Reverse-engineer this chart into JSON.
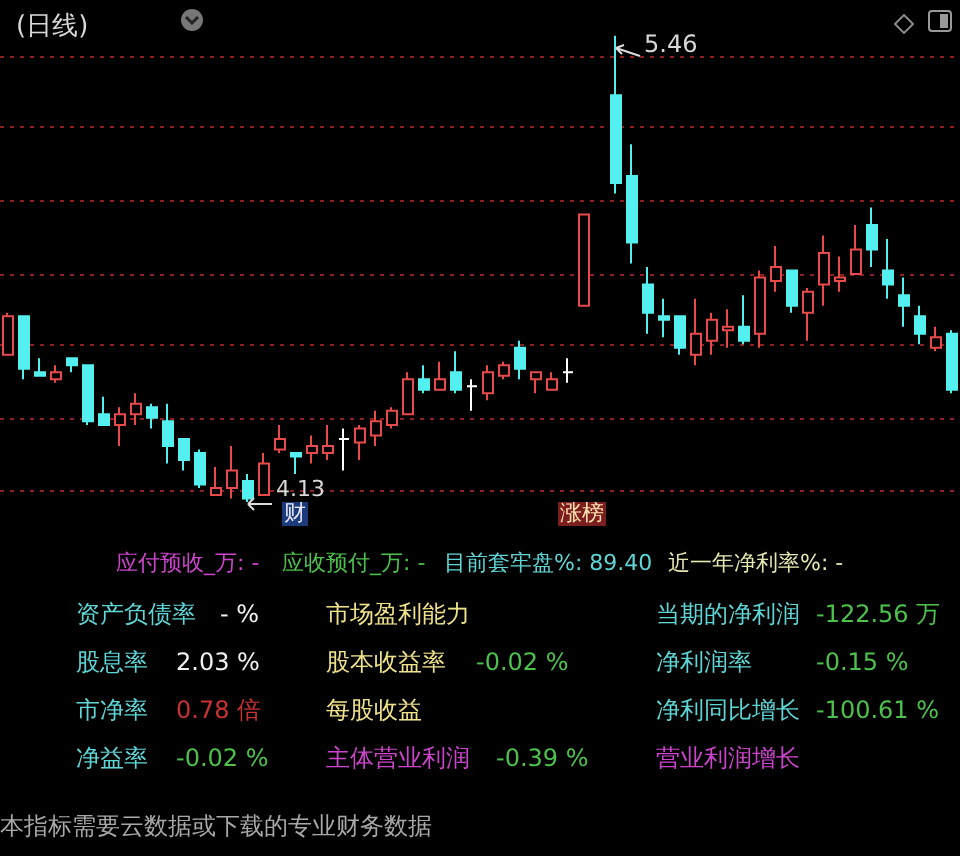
{
  "chart_data": [
    {
      "type": "candlestick",
      "title": "(日线)",
      "categories": [
        null,
        null,
        null,
        null,
        null,
        null,
        null,
        null,
        null,
        null,
        null,
        null,
        null,
        null,
        null,
        null,
        null,
        null,
        null,
        null,
        null,
        null,
        null,
        null,
        null,
        null,
        null,
        null,
        null,
        null,
        null,
        null,
        null,
        null,
        null,
        null,
        null,
        null,
        null,
        null,
        null,
        null,
        null,
        null,
        null,
        null,
        null,
        null,
        null,
        null,
        null,
        null,
        null,
        null,
        null,
        null,
        null,
        null,
        null,
        null
      ],
      "ohlc": [
        [
          4.55,
          4.67,
          4.55,
          4.66
        ],
        [
          4.66,
          4.66,
          4.48,
          4.51
        ],
        [
          4.5,
          4.54,
          4.49,
          4.49
        ],
        [
          4.48,
          4.52,
          4.47,
          4.5
        ],
        [
          4.54,
          4.54,
          4.5,
          4.52
        ],
        [
          4.52,
          4.52,
          4.35,
          4.36
        ],
        [
          4.38,
          4.43,
          4.35,
          4.35
        ],
        [
          4.35,
          4.4,
          4.29,
          4.38
        ],
        [
          4.38,
          4.44,
          4.35,
          4.41
        ],
        [
          4.4,
          4.41,
          4.34,
          4.37
        ],
        [
          4.36,
          4.41,
          4.24,
          4.29
        ],
        [
          4.31,
          4.31,
          4.22,
          4.25
        ],
        [
          4.27,
          4.28,
          4.17,
          4.18
        ],
        [
          4.15,
          4.23,
          4.15,
          4.17
        ],
        [
          4.17,
          4.29,
          4.14,
          4.22
        ],
        [
          4.19,
          4.21,
          4.13,
          4.14
        ],
        [
          4.15,
          4.27,
          4.15,
          4.24
        ],
        [
          4.28,
          4.35,
          4.27,
          4.31
        ],
        [
          4.27,
          4.27,
          4.21,
          4.26
        ],
        [
          4.27,
          4.32,
          4.24,
          4.29
        ],
        [
          4.27,
          4.35,
          4.25,
          4.29
        ],
        [
          4.31,
          4.34,
          4.22,
          4.31
        ],
        [
          4.3,
          4.35,
          4.25,
          4.34
        ],
        [
          4.32,
          4.39,
          4.29,
          4.36
        ],
        [
          4.35,
          4.4,
          4.34,
          4.39
        ],
        [
          4.38,
          4.5,
          4.38,
          4.48
        ],
        [
          4.48,
          4.52,
          4.44,
          4.45
        ],
        [
          4.45,
          4.53,
          4.45,
          4.48
        ],
        [
          4.5,
          4.56,
          4.44,
          4.45
        ],
        [
          4.46,
          4.48,
          4.39,
          4.46
        ],
        [
          4.44,
          4.52,
          4.42,
          4.5
        ],
        [
          4.49,
          4.53,
          4.48,
          4.52
        ],
        [
          4.57,
          4.59,
          4.48,
          4.51
        ],
        [
          4.48,
          4.5,
          4.44,
          4.5
        ],
        [
          4.45,
          4.5,
          4.45,
          4.48
        ],
        [
          4.5,
          4.54,
          4.47,
          4.5
        ],
        [
          4.69,
          4.95,
          4.69,
          4.95
        ],
        null,
        [
          5.29,
          5.46,
          5.01,
          5.04
        ],
        [
          5.06,
          5.15,
          4.81,
          4.87
        ],
        [
          4.75,
          4.8,
          4.61,
          4.67
        ],
        [
          4.66,
          4.71,
          4.6,
          4.65
        ],
        [
          4.66,
          4.66,
          4.55,
          4.57
        ],
        [
          4.55,
          4.71,
          4.52,
          4.61
        ],
        [
          4.59,
          4.67,
          4.55,
          4.65
        ],
        [
          4.62,
          4.68,
          4.57,
          4.63
        ],
        [
          4.63,
          4.72,
          4.58,
          4.59
        ],
        [
          4.61,
          4.79,
          4.57,
          4.77
        ],
        [
          4.76,
          4.86,
          4.73,
          4.8
        ],
        [
          4.79,
          4.79,
          4.67,
          4.69
        ],
        [
          4.67,
          4.74,
          4.59,
          4.73
        ],
        [
          4.75,
          4.89,
          4.69,
          4.84
        ],
        [
          4.76,
          4.83,
          4.73,
          4.77
        ],
        [
          4.78,
          4.92,
          4.78,
          4.85
        ],
        [
          4.92,
          4.97,
          4.8,
          4.85
        ],
        [
          4.79,
          4.88,
          4.71,
          4.75
        ],
        [
          4.72,
          4.77,
          4.63,
          4.69
        ],
        [
          4.66,
          4.69,
          4.58,
          4.61
        ],
        [
          4.57,
          4.63,
          4.56,
          4.6
        ],
        [
          4.61,
          4.62,
          4.44,
          4.45
        ]
      ],
      "colors": [
        "#e84a4a",
        "#54f0f0",
        "#54f0f0",
        "#e84a4a",
        "#54f0f0",
        "#54f0f0",
        "#54f0f0",
        "#e84a4a",
        "#e84a4a",
        "#54f0f0",
        "#54f0f0",
        "#54f0f0",
        "#54f0f0",
        "#e84a4a",
        "#e84a4a",
        "#54f0f0",
        "#e84a4a",
        "#e84a4a",
        "#54f0f0",
        "#e84a4a",
        "#e84a4a",
        "#ffffff",
        "#e84a4a",
        "#e84a4a",
        "#e84a4a",
        "#e84a4a",
        "#54f0f0",
        "#e84a4a",
        "#54f0f0",
        "#ffffff",
        "#e84a4a",
        "#e84a4a",
        "#54f0f0",
        "#e84a4a",
        "#e84a4a",
        "#ffffff",
        "#e84a4a",
        null,
        "#54f0f0",
        "#54f0f0",
        "#54f0f0",
        "#54f0f0",
        "#54f0f0",
        "#e84a4a",
        "#e84a4a",
        "#e84a4a",
        "#54f0f0",
        "#e84a4a",
        "#e84a4a",
        "#54f0f0",
        "#e84a4a",
        "#e84a4a",
        "#e84a4a",
        "#e84a4a",
        "#54f0f0",
        "#54f0f0",
        "#54f0f0",
        "#54f0f0",
        "#e84a4a",
        "#54f0f0"
      ],
      "yticks": [
        {
          "value": 4.16,
          "label": null
        },
        {
          "value": 4.37,
          "label": null
        },
        {
          "value": 4.58,
          "label": null
        },
        {
          "value": 4.78,
          "label": null
        },
        {
          "value": 4.99,
          "label": null
        },
        {
          "value": 5.2,
          "label": null
        },
        {
          "value": 5.4,
          "label": null
        }
      ],
      "grid": "y",
      "tick_labels": false,
      "annotations": [
        "5.46",
        "4.13",
        "财",
        "涨榜"
      ]
    },
    {
      "type": "other",
      "annotations": [
        "应付预收_万: -",
        "应收预付_万: -",
        "目前套牢盘%: 89.40",
        "近一年净利率%: -",
        "资产负债率",
        "- %",
        "市场盈利能力",
        "当期的净利润",
        "-122.56 万",
        "股息率",
        "2.03 %",
        "股本收益率",
        "-0.02 %",
        "净利润率",
        "-0.15 %",
        "市净率",
        "0.78 倍",
        "每股收益",
        "净利同比增长",
        "-100.61 %",
        "净益率",
        "-0.02 %",
        "主体营业利润",
        "-0.39 %",
        "营业利润增长",
        "本指标需要云数据或下载的专业财务数据"
      ]
    }
  ]
}
